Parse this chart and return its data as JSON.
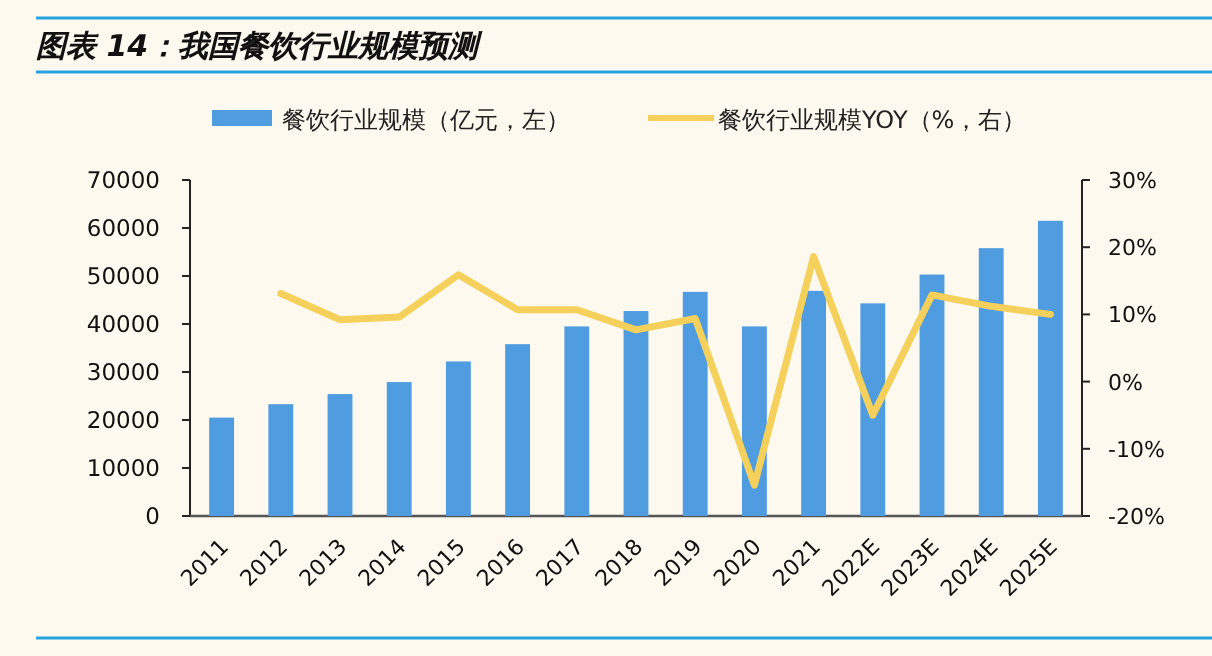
{
  "chart_data": {
    "type": "bar",
    "title": "图表 14：我国餐饮行业规模预测",
    "categories": [
      "2011",
      "2012",
      "2013",
      "2014",
      "2015",
      "2016",
      "2017",
      "2018",
      "2019",
      "2020",
      "2021",
      "2022E",
      "2023E",
      "2024E",
      "2025E"
    ],
    "series": [
      {
        "name": "餐饮行业规模（亿元，左）",
        "color": "#4f9de0",
        "values": [
          20500,
          23300,
          25400,
          27900,
          32200,
          35800,
          39500,
          42700,
          46700,
          39500,
          46900,
          44300,
          50300,
          55800,
          61500
        ]
      },
      {
        "name": "餐饮行业规模YOY（%，右）",
        "type": "line",
        "axis": "y2",
        "color": "#f5d05a",
        "values": [
          null,
          13.1,
          9.2,
          9.6,
          15.9,
          10.7,
          10.7,
          7.7,
          9.4,
          -15.4,
          18.6,
          -5.0,
          12.9,
          11.2,
          10.0
        ]
      }
    ],
    "ylim": [
      0,
      70000
    ],
    "yticks": [
      0,
      10000,
      20000,
      30000,
      40000,
      50000,
      60000,
      70000
    ],
    "y2lim": [
      -20,
      30
    ],
    "y2ticks": [
      {
        "value": -20,
        "label": "-20%"
      },
      {
        "value": -10,
        "label": "-10%"
      },
      {
        "value": 0,
        "label": "0%"
      },
      {
        "value": 10,
        "label": "10%"
      },
      {
        "value": 20,
        "label": "20%"
      },
      {
        "value": 30,
        "label": "30%"
      }
    ],
    "legend": "top",
    "grid": false
  }
}
